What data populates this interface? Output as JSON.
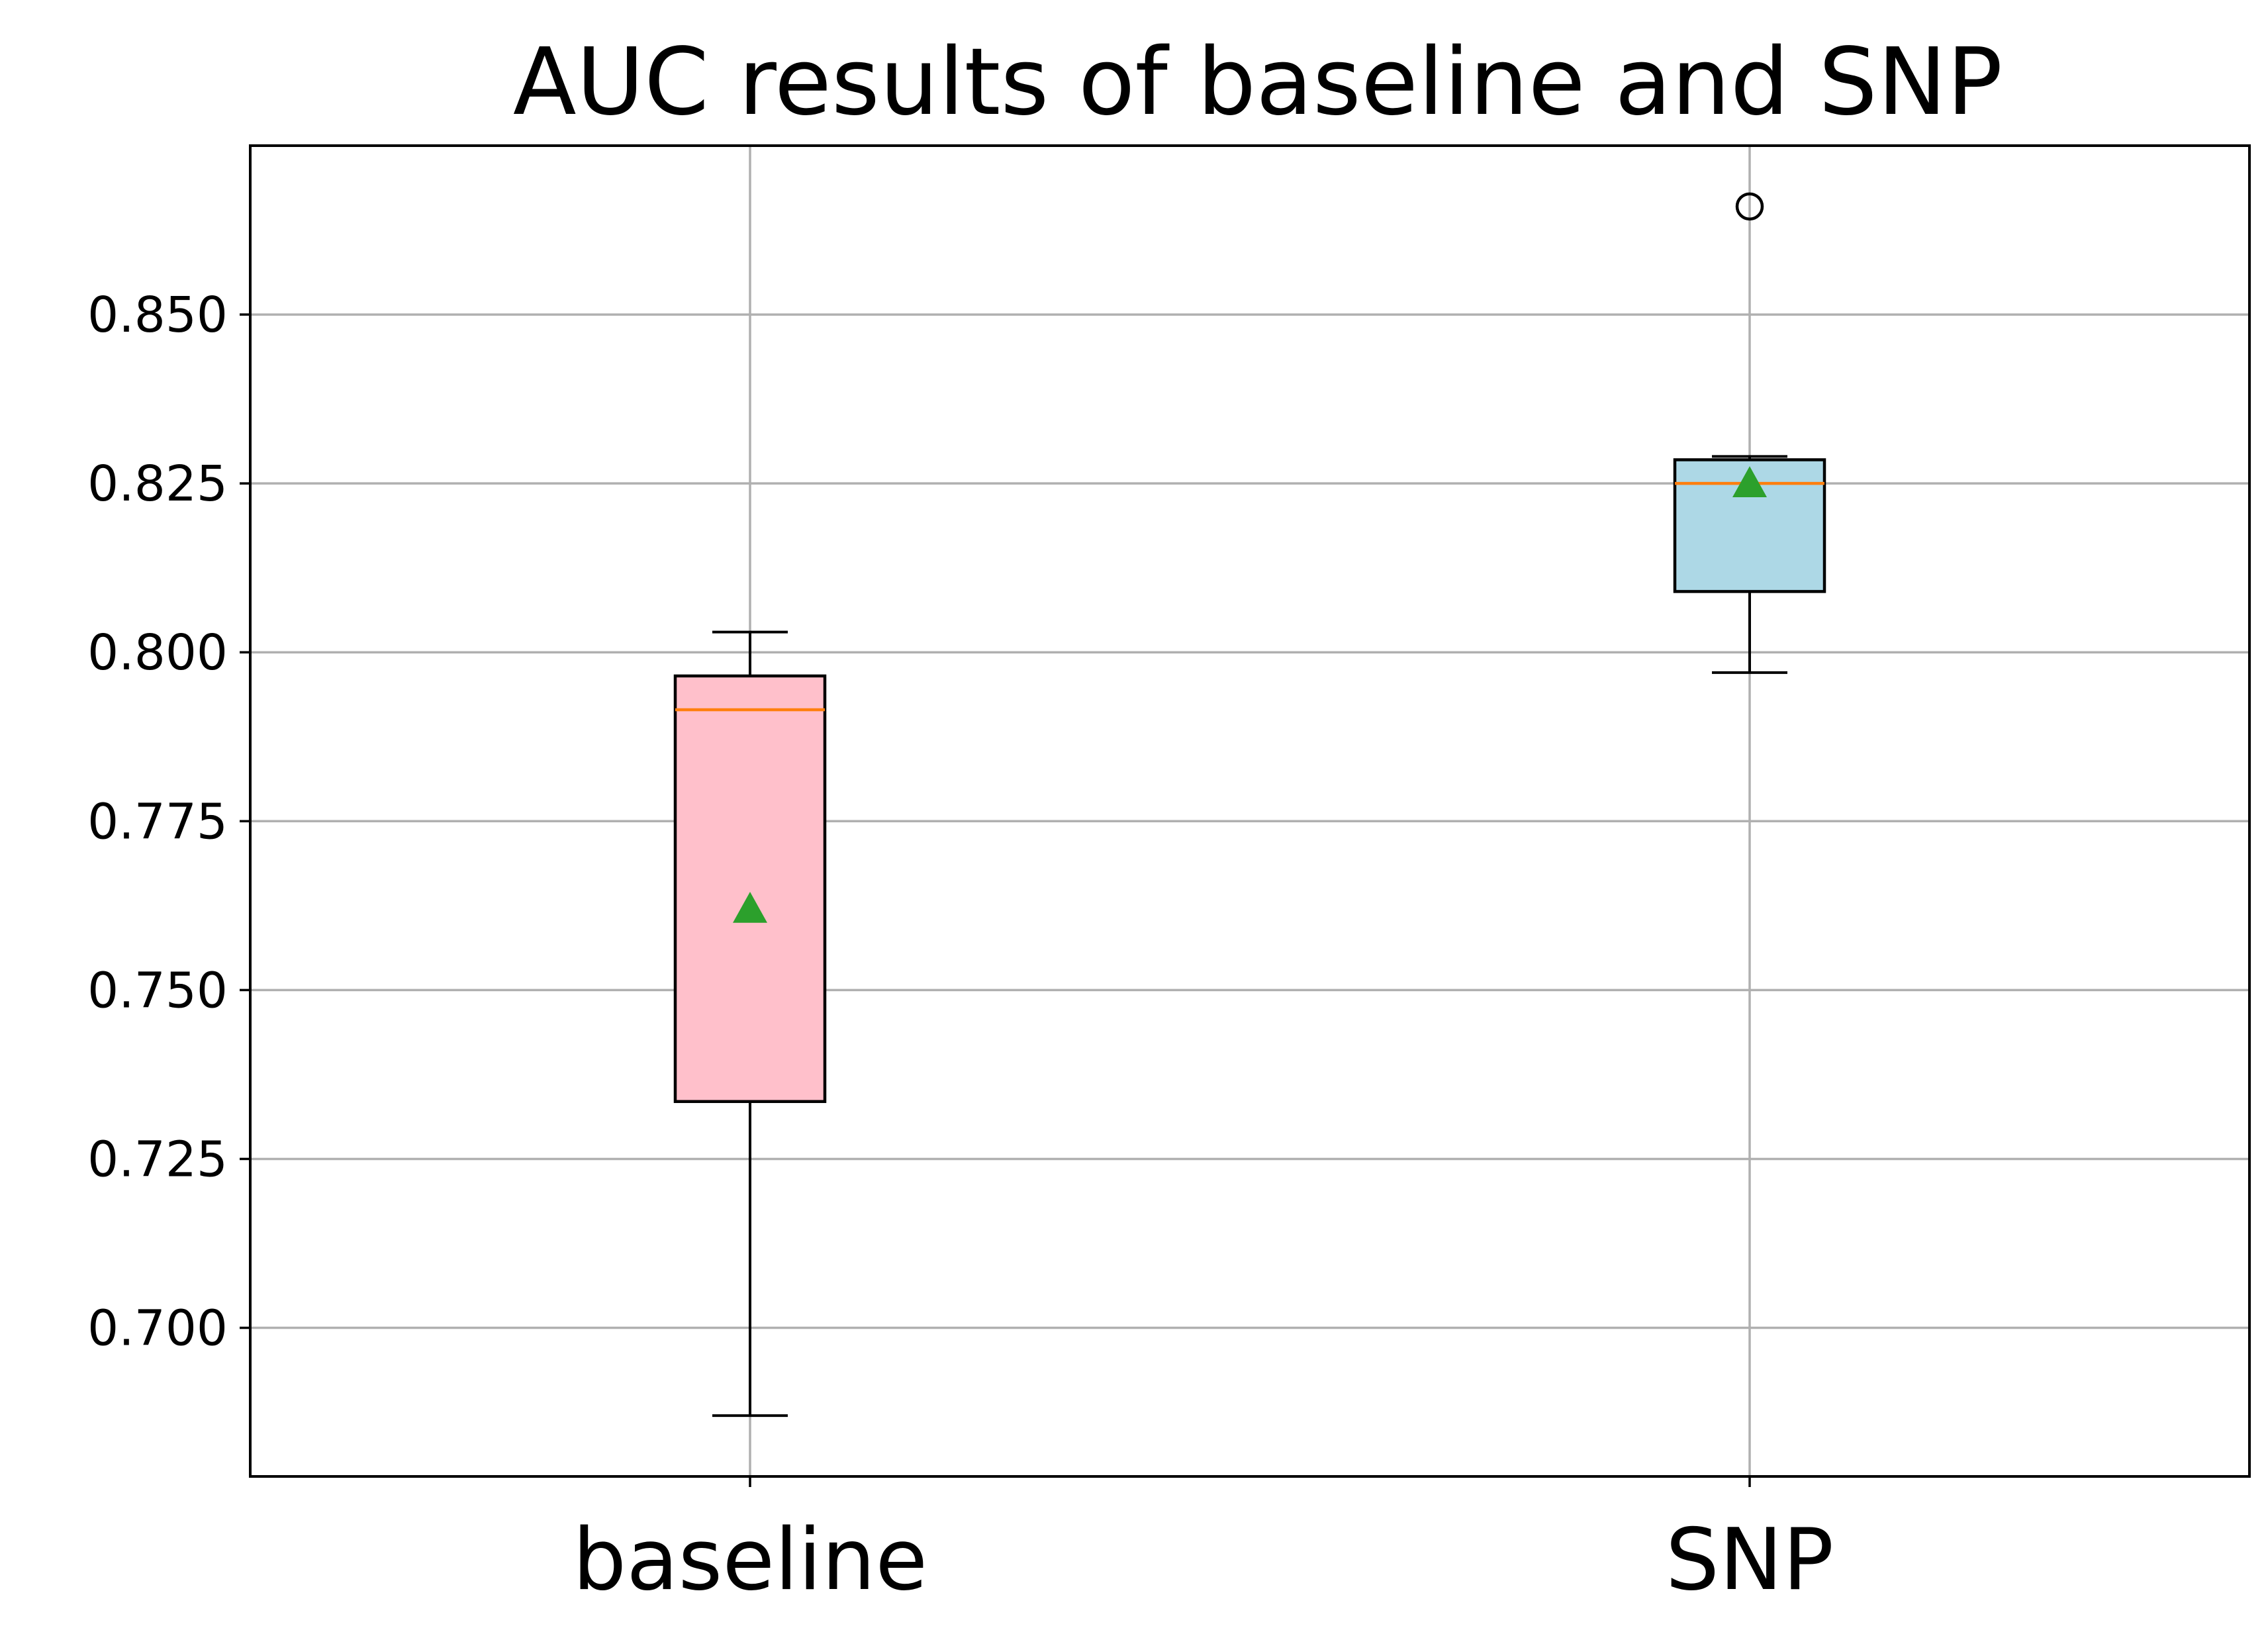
{
  "chart_data": {
    "type": "boxplot",
    "title": "AUC results of baseline and SNP",
    "xlabel": "",
    "ylabel": "",
    "categories": [
      "baseline",
      "SNP"
    ],
    "ylim": [
      0.678,
      0.875
    ],
    "yticks": [
      0.7,
      0.725,
      0.75,
      0.775,
      0.8,
      0.825,
      0.85
    ],
    "ytick_labels": [
      "0.700",
      "0.725",
      "0.750",
      "0.775",
      "0.800",
      "0.825",
      "0.850"
    ],
    "grid": true,
    "boxes": [
      {
        "category": "baseline",
        "whisker_low": 0.687,
        "q1": 0.7335,
        "median": 0.7915,
        "q3": 0.7965,
        "whisker_high": 0.803,
        "mean": 0.762,
        "outliers": [],
        "fill_color": "#ffc0cb"
      },
      {
        "category": "SNP",
        "whisker_low": 0.797,
        "q1": 0.809,
        "median": 0.825,
        "q3": 0.8285,
        "whisker_high": 0.829,
        "mean": 0.825,
        "outliers": [
          0.866
        ],
        "fill_color": "#add8e6"
      }
    ],
    "colors": {
      "median": "#ff7f0e",
      "mean_marker": "#2ca02c",
      "grid": "#b0b0b0",
      "box_edge": "#000000"
    }
  }
}
